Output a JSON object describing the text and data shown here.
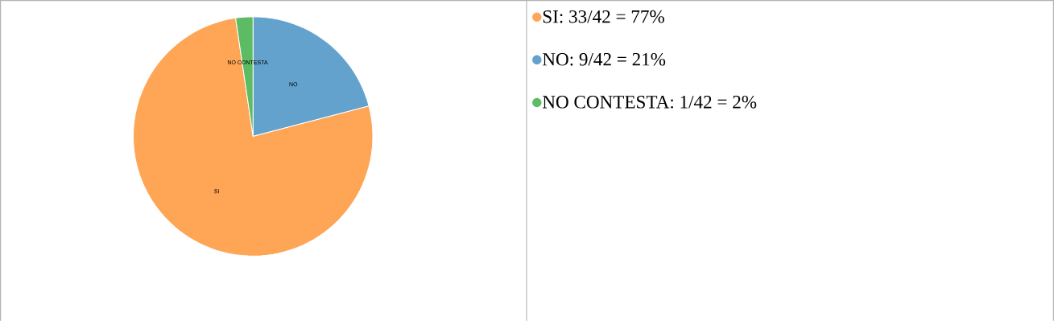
{
  "chart_data": {
    "type": "pie",
    "categories": [
      "SI: 33/42 = 77%",
      "NO: 9/42 = 21%",
      "NO CONTESTA: 1/42 = 2%"
    ],
    "values": [
      33,
      9,
      1
    ],
    "colors": [
      "#ffa556",
      "#63a2cc",
      "#5dbb63"
    ],
    "annotations": [
      "SI",
      "NO",
      "NO CONTESTA"
    ],
    "legend": "right"
  }
}
